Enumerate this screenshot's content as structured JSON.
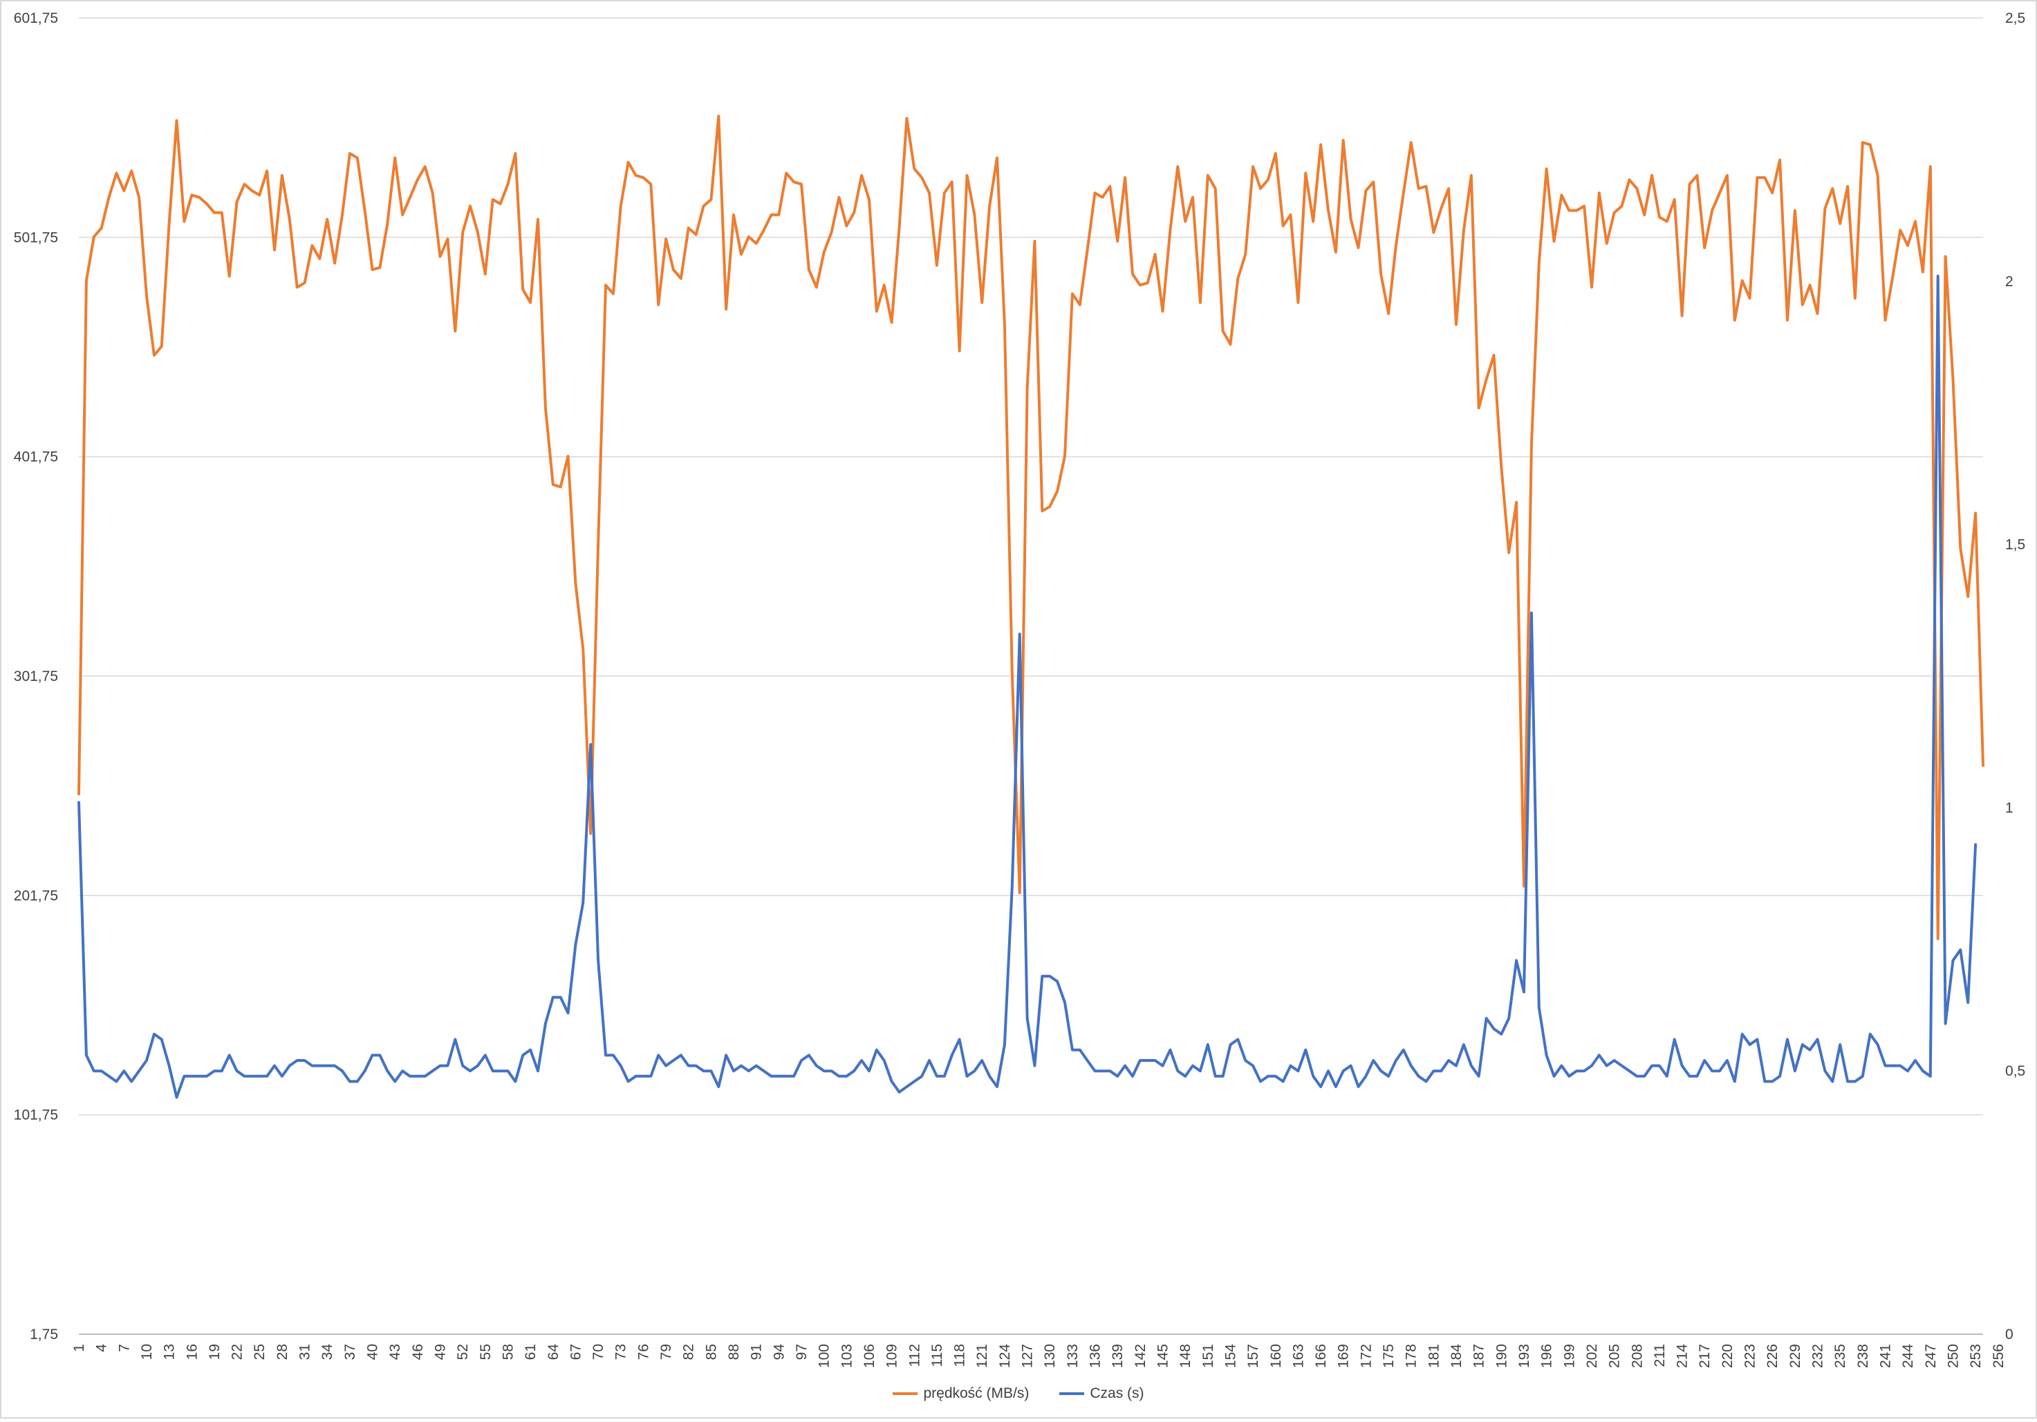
{
  "chart_data": {
    "type": "line",
    "title": "",
    "xlabel": "",
    "ylabel": "",
    "x_tick_labels": [
      "1",
      "4",
      "7",
      "10",
      "13",
      "16",
      "19",
      "22",
      "25",
      "28",
      "31",
      "34",
      "37",
      "40",
      "43",
      "46",
      "49",
      "52",
      "55",
      "58",
      "61",
      "64",
      "67",
      "70",
      "73",
      "76",
      "79",
      "82",
      "85",
      "88",
      "91",
      "94",
      "97",
      "100",
      "103",
      "106",
      "109",
      "112",
      "115",
      "118",
      "121",
      "124",
      "127",
      "130",
      "133",
      "136",
      "139",
      "142",
      "145",
      "148",
      "151",
      "154",
      "157",
      "160",
      "163",
      "166",
      "169",
      "172",
      "175",
      "178",
      "181",
      "184",
      "187",
      "190",
      "193",
      "196",
      "199",
      "202",
      "205",
      "208",
      "211",
      "214",
      "217",
      "220",
      "223",
      "226",
      "229",
      "232",
      "235",
      "238",
      "241",
      "244",
      "247",
      "250",
      "253",
      "256"
    ],
    "y_left": {
      "ticks": [
        "601,75",
        "501,75",
        "401,75",
        "301,75",
        "201,75",
        "101,75",
        "1,75"
      ],
      "ylim": [
        1.75,
        601.75
      ]
    },
    "y_right": {
      "ticks": [
        "2,5",
        "2",
        "1,5",
        "1",
        "0,5",
        "0"
      ],
      "ylim": [
        0,
        2.5
      ]
    },
    "grid": "horizontal",
    "legend_position": "bottom",
    "series": [
      {
        "name": "prędkość (MB/s)",
        "axis": "left",
        "color": "#ED7D31",
        "values": [
          248,
          482,
          502,
          506,
          520,
          531,
          523,
          532,
          520,
          475,
          448,
          452,
          508,
          555,
          509,
          521,
          520,
          517,
          513,
          513,
          484,
          518,
          526,
          523,
          521,
          532,
          496,
          530,
          510,
          479,
          481,
          498,
          492,
          510,
          490,
          512,
          540,
          538,
          514,
          487,
          488,
          508,
          538,
          512,
          520,
          528,
          534,
          522,
          493,
          501,
          459,
          504,
          516,
          504,
          485,
          519,
          517,
          526,
          540,
          478,
          472,
          510,
          424,
          389,
          388,
          402,
          344,
          314,
          230,
          362,
          480,
          476,
          516,
          536,
          530,
          529,
          526,
          471,
          501,
          487,
          483,
          506,
          503,
          516,
          519,
          557,
          469,
          512,
          494,
          502,
          499,
          505,
          512,
          512,
          531,
          527,
          526,
          487,
          479,
          495,
          504,
          520,
          507,
          513,
          530,
          519,
          468,
          480,
          463,
          506,
          556,
          533,
          529,
          522,
          489,
          522,
          527,
          450,
          530,
          512,
          472,
          516,
          538,
          462,
          303,
          203,
          433,
          500,
          377,
          379,
          386,
          402,
          476,
          471,
          496,
          522,
          520,
          525,
          500,
          529,
          485,
          480,
          481,
          494,
          468,
          505,
          534,
          509,
          520,
          472,
          530,
          524,
          459,
          453,
          483,
          494,
          534,
          524,
          528,
          540,
          507,
          512,
          472,
          531,
          509,
          544,
          514,
          495,
          546,
          510,
          497,
          523,
          527,
          485,
          467,
          498,
          522,
          545,
          524,
          525,
          504,
          515,
          524,
          462,
          505,
          530,
          424,
          437,
          448,
          397,
          358,
          381,
          206,
          407,
          490,
          533,
          500,
          521,
          514,
          514,
          516,
          479,
          522,
          499,
          513,
          516,
          528,
          524,
          512,
          530,
          511,
          509,
          519,
          466,
          526,
          530,
          497,
          514,
          522,
          530,
          464,
          482,
          474,
          529,
          529,
          522,
          537,
          464,
          514,
          471,
          480,
          467,
          515,
          524,
          508,
          525,
          474,
          545,
          544,
          530,
          464,
          484,
          505,
          498,
          509,
          486,
          534,
          182,
          493,
          437,
          360,
          338,
          376,
          261
        ]
      },
      {
        "name": "Czas (s)",
        "axis": "right",
        "color": "#4472C4",
        "values": [
          1.01,
          0.53,
          0.5,
          0.5,
          0.49,
          0.48,
          0.5,
          0.48,
          0.5,
          0.52,
          0.57,
          0.56,
          0.51,
          0.45,
          0.49,
          0.49,
          0.49,
          0.49,
          0.5,
          0.5,
          0.53,
          0.5,
          0.49,
          0.49,
          0.49,
          0.49,
          0.51,
          0.49,
          0.51,
          0.52,
          0.52,
          0.51,
          0.51,
          0.51,
          0.51,
          0.5,
          0.48,
          0.48,
          0.5,
          0.53,
          0.53,
          0.5,
          0.48,
          0.5,
          0.49,
          0.49,
          0.49,
          0.5,
          0.51,
          0.51,
          0.56,
          0.51,
          0.5,
          0.51,
          0.53,
          0.5,
          0.5,
          0.5,
          0.48,
          0.53,
          0.54,
          0.5,
          0.59,
          0.64,
          0.64,
          0.61,
          0.74,
          0.82,
          1.12,
          0.71,
          0.53,
          0.53,
          0.51,
          0.48,
          0.49,
          0.49,
          0.49,
          0.53,
          0.51,
          0.52,
          0.53,
          0.51,
          0.51,
          0.5,
          0.5,
          0.47,
          0.53,
          0.5,
          0.51,
          0.5,
          0.51,
          0.5,
          0.49,
          0.49,
          0.49,
          0.49,
          0.52,
          0.53,
          0.51,
          0.5,
          0.5,
          0.49,
          0.49,
          0.5,
          0.52,
          0.5,
          0.54,
          0.52,
          0.48,
          0.46,
          0.47,
          0.48,
          0.49,
          0.52,
          0.49,
          0.49,
          0.53,
          0.56,
          0.49,
          0.5,
          0.52,
          0.49,
          0.47,
          0.55,
          0.85,
          1.33,
          0.6,
          0.51,
          0.68,
          0.68,
          0.67,
          0.63,
          0.54,
          0.54,
          0.52,
          0.5,
          0.5,
          0.5,
          0.49,
          0.51,
          0.49,
          0.52,
          0.52,
          0.52,
          0.51,
          0.54,
          0.5,
          0.49,
          0.51,
          0.5,
          0.55,
          0.49,
          0.49,
          0.55,
          0.56,
          0.52,
          0.51,
          0.48,
          0.49,
          0.49,
          0.48,
          0.51,
          0.5,
          0.54,
          0.49,
          0.47,
          0.5,
          0.47,
          0.5,
          0.51,
          0.47,
          0.49,
          0.52,
          0.5,
          0.49,
          0.52,
          0.54,
          0.51,
          0.49,
          0.48,
          0.5,
          0.5,
          0.52,
          0.51,
          0.55,
          0.51,
          0.49,
          0.6,
          0.58,
          0.57,
          0.6,
          0.71,
          0.65,
          1.37,
          0.62,
          0.53,
          0.49,
          0.51,
          0.49,
          0.5,
          0.5,
          0.51,
          0.53,
          0.51,
          0.52,
          0.51,
          0.5,
          0.49,
          0.49,
          0.51,
          0.51,
          0.49,
          0.56,
          0.51,
          0.49,
          0.49,
          0.52,
          0.5,
          0.5,
          0.52,
          0.48,
          0.57,
          0.55,
          0.56,
          0.48,
          0.48,
          0.49,
          0.56,
          0.5,
          0.55,
          0.54,
          0.56,
          0.5,
          0.48,
          0.55,
          0.48,
          0.48,
          0.49,
          0.57,
          0.55,
          0.51,
          0.51,
          0.51,
          0.5,
          0.52,
          0.5,
          0.49,
          2.01,
          0.59,
          0.71,
          0.73,
          0.63,
          0.93
        ]
      }
    ]
  }
}
